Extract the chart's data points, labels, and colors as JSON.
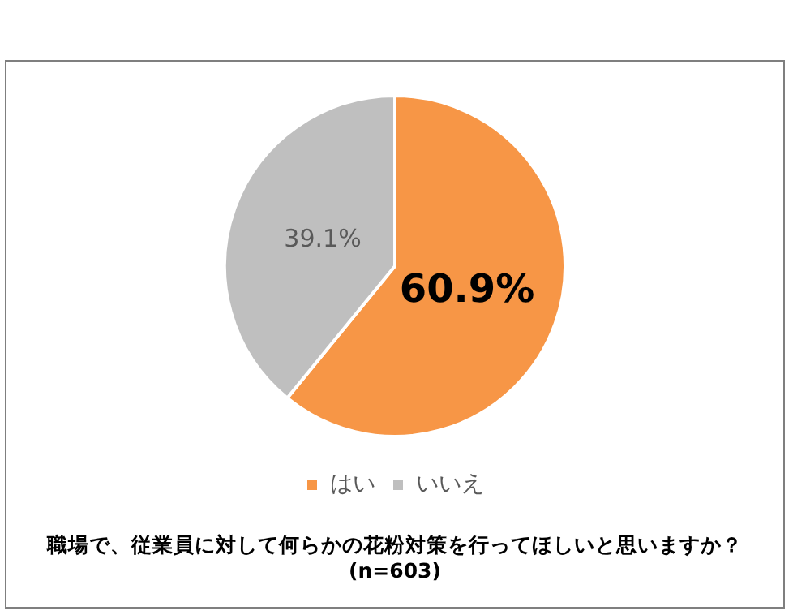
{
  "chart_data": {
    "type": "pie",
    "title": "職場で、従業員に対して何らかの花粉対策を行ってほしいと思いますか？",
    "subtitle": "(n=603)",
    "categories": [
      "はい",
      "いいえ"
    ],
    "values": [
      60.9,
      39.1
    ],
    "colors": [
      "#f79646",
      "#bfbfbf"
    ],
    "value_labels": [
      "60.9%",
      "39.1%"
    ],
    "legend": "bottom"
  }
}
